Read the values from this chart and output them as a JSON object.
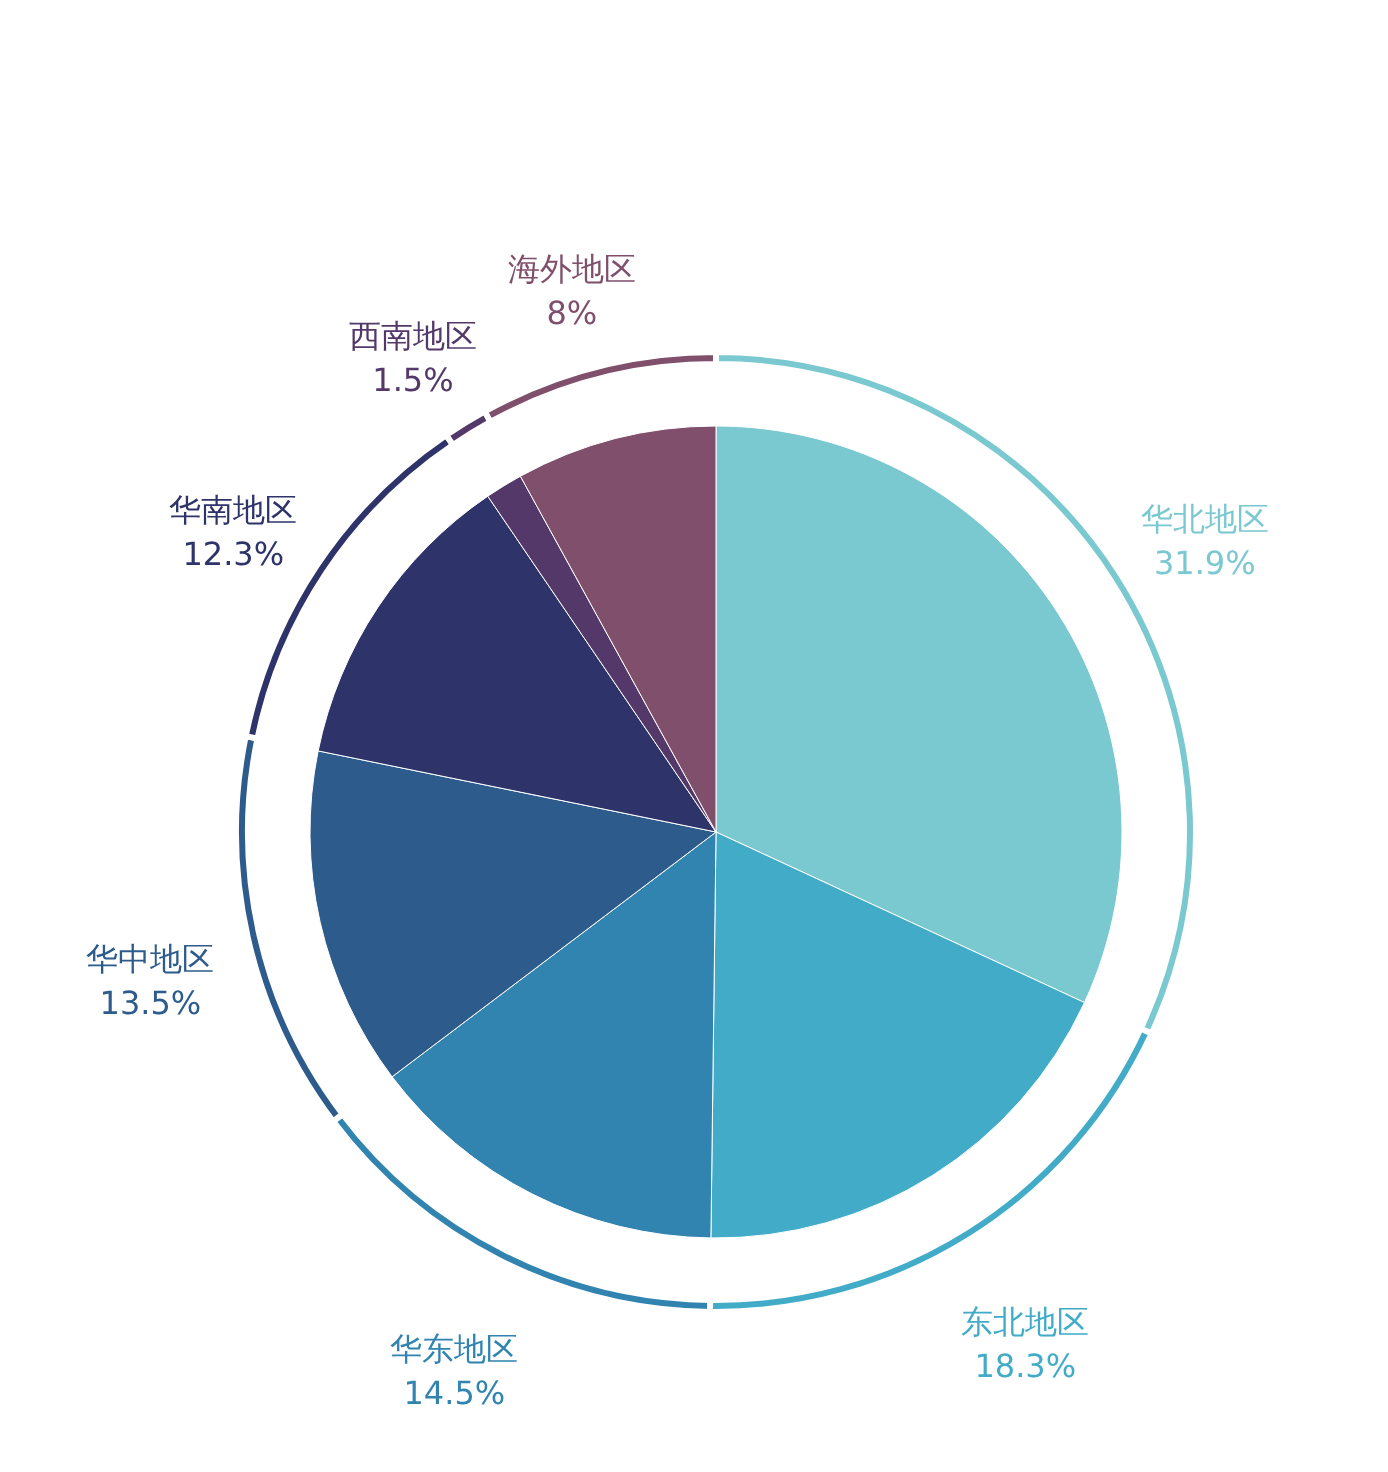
{
  "chart_data": {
    "type": "pie",
    "categories": [
      "华北地区",
      "东北地区",
      "华东地区",
      "华中地区",
      "华南地区",
      "西南地区",
      "海外地区"
    ],
    "series": [
      {
        "values": [
          31.9,
          18.3,
          14.5,
          13.5,
          12.3,
          1.5,
          8
        ],
        "value_labels": [
          "31.9%",
          "18.3%",
          "14.5%",
          "13.5%",
          "12.3%",
          "1.5%",
          "8%"
        ]
      },
      {
        "type": "donut",
        "values": [
          31.9,
          18.3,
          14.5,
          13.5,
          12.3,
          1.5,
          8
        ]
      }
    ],
    "colors": [
      "#7ac8d0",
      "#42acc8",
      "#3184b0",
      "#2d5b8c",
      "#2e336a",
      "#55386a",
      "#7f4f6c"
    ]
  }
}
